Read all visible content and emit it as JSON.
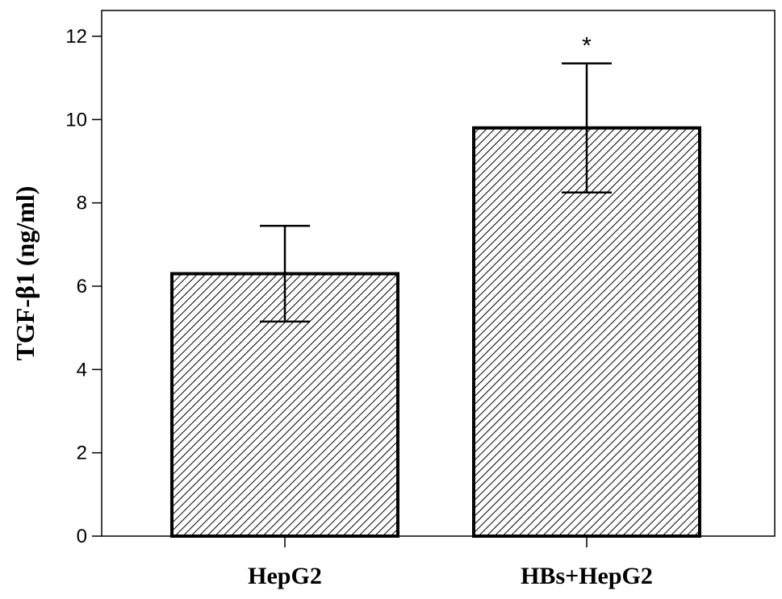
{
  "chart_data": {
    "type": "bar",
    "title": "",
    "xlabel": "",
    "ylabel": "TGF-β1 (ng/ml)",
    "categories": [
      "HepG2",
      "HBs+HepG2"
    ],
    "values": [
      6.3,
      9.8
    ],
    "error_high": [
      7.45,
      11.35
    ],
    "error_low": [
      5.15,
      8.25
    ],
    "annotations": [
      "",
      "*"
    ],
    "ylim": [
      0,
      12
    ],
    "yticks": [
      0,
      2,
      4,
      6,
      8,
      10,
      12
    ],
    "ytick_labels": [
      "0",
      "2",
      "4",
      "6",
      "8",
      "10",
      "12"
    ],
    "grid": false,
    "bar_fill": "diagonal-hatch",
    "bar_color": "#000000"
  }
}
